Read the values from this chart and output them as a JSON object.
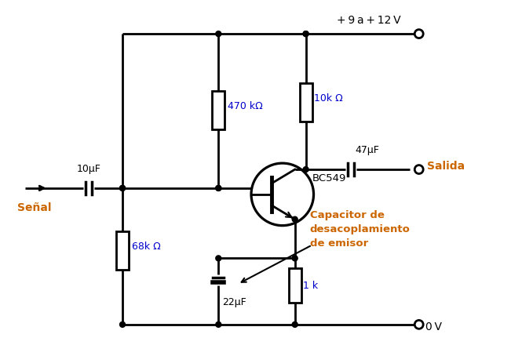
{
  "bg_color": "#ffffff",
  "labels": {
    "supply": "+ 9 a + 12 V",
    "gnd": "0 V",
    "signal_label": "Señal",
    "output_label": "Salida",
    "r1": "470 kΩ",
    "r2": "68k Ω",
    "rc": "10k Ω",
    "re": "1 k",
    "c1": "10μF",
    "c2": "47μF",
    "c3": "22μF",
    "transistor": "BC549",
    "annotation": "Capacitor de\ndesacoplamiento\nde emisor"
  }
}
